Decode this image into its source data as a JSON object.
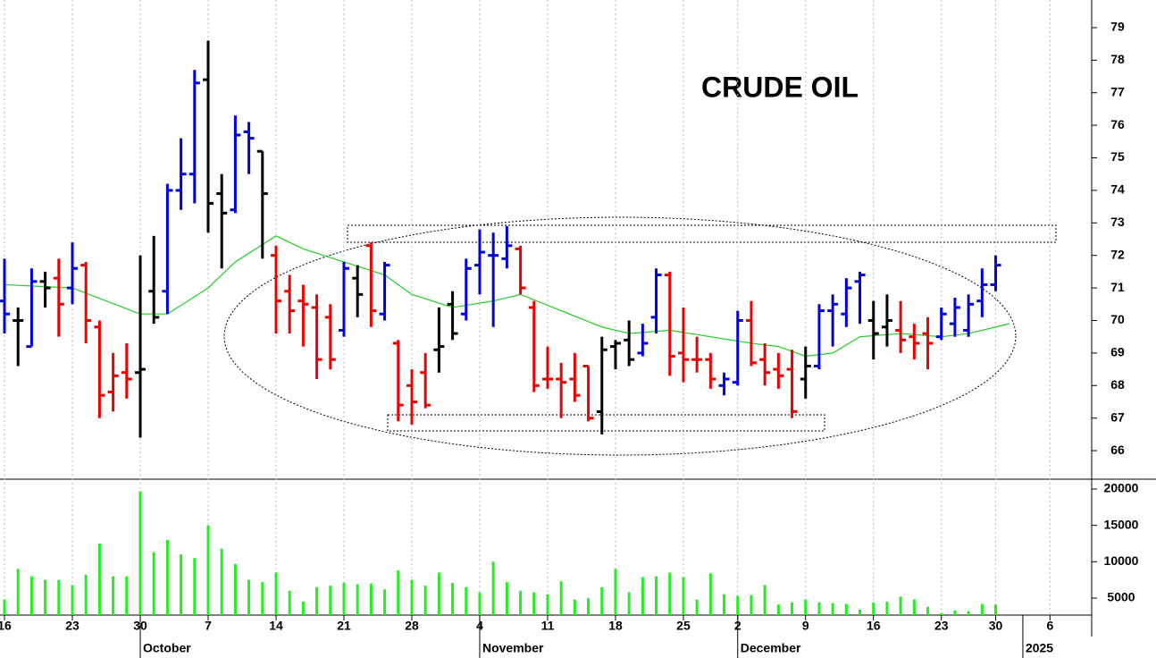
{
  "chart_data": [
    {
      "type": "ohlc",
      "title": "CRUDE OIL",
      "xlim": [
        -0.33,
        80.07
      ],
      "ylim": [
        65.15,
        79.85
      ],
      "yticks": [
        66,
        67,
        68,
        69,
        70,
        71,
        72,
        73,
        74,
        75,
        76,
        77,
        78,
        79
      ],
      "open": [
        70.6,
        70.0,
        69.2,
        71.2,
        71.3,
        71.0,
        71.7,
        69.8,
        67.8,
        68.4,
        68.4,
        70.9,
        70.9,
        74.0,
        74.5,
        77.4,
        73.9,
        73.4,
        75.8,
        75.2,
        72.0,
        70.9,
        70.6,
        70.4,
        70.1,
        69.7,
        71.3,
        72.3,
        70.2,
        69.3,
        68.0,
        68.4,
        69.1,
        70.5,
        70.2,
        71.7,
        72.0,
        71.9,
        72.2,
        70.4,
        68.2,
        68.2,
        68.2,
        68.6,
        67.2,
        69.2,
        69.4,
        69.0,
        70.1,
        71.4,
        69.0,
        68.8,
        68.8,
        68.0,
        68.1,
        70.0,
        68.8,
        68.5,
        68.5,
        68.2,
        68.6,
        70.3,
        70.2,
        71.2,
        70.0,
        69.8,
        69.7,
        69.5,
        69.6,
        69.5,
        69.9,
        69.7,
        70.6,
        71.1
      ],
      "high": [
        71.9,
        70.4,
        71.6,
        71.5,
        71.9,
        72.4,
        71.8,
        70.0,
        69.0,
        69.3,
        72.0,
        72.6,
        74.2,
        75.6,
        77.7,
        78.6,
        74.5,
        76.3,
        76.1,
        75.2,
        72.3,
        71.4,
        71.1,
        70.8,
        70.5,
        71.8,
        71.7,
        72.4,
        71.8,
        69.4,
        68.5,
        69.0,
        70.4,
        70.9,
        71.9,
        72.8,
        72.7,
        72.9,
        72.3,
        70.6,
        69.2,
        68.7,
        69.0,
        68.6,
        69.5,
        69.4,
        70.0,
        69.9,
        71.6,
        71.5,
        70.4,
        69.5,
        69.0,
        68.4,
        70.3,
        70.6,
        69.3,
        69.0,
        69.1,
        69.2,
        70.5,
        70.8,
        71.3,
        71.5,
        70.6,
        70.8,
        70.6,
        69.9,
        70.1,
        70.4,
        70.7,
        70.8,
        71.6,
        72.0
      ],
      "low": [
        69.6,
        68.6,
        69.2,
        70.4,
        69.5,
        70.5,
        69.3,
        67.0,
        67.2,
        67.6,
        66.4,
        69.9,
        70.2,
        73.4,
        73.6,
        72.7,
        71.6,
        73.3,
        74.5,
        71.9,
        69.6,
        69.6,
        69.2,
        68.2,
        68.5,
        69.5,
        70.1,
        69.8,
        70.0,
        66.9,
        66.8,
        67.3,
        68.4,
        69.4,
        70.0,
        70.8,
        69.8,
        71.6,
        70.8,
        67.8,
        67.9,
        67.0,
        67.5,
        66.9,
        66.5,
        68.5,
        68.6,
        68.9,
        69.6,
        68.3,
        68.1,
        68.4,
        67.9,
        67.7,
        68.0,
        68.6,
        68.0,
        67.9,
        67.0,
        67.6,
        68.5,
        69.2,
        69.8,
        69.9,
        68.8,
        69.2,
        69.0,
        68.8,
        68.5,
        69.4,
        69.5,
        69.5,
        70.1,
        70.9
      ],
      "close": [
        70.2,
        70.0,
        71.2,
        71.0,
        70.5,
        71.6,
        70.0,
        67.7,
        68.3,
        68.2,
        68.5,
        70.1,
        74.0,
        74.5,
        77.3,
        73.6,
        73.3,
        75.7,
        75.6,
        73.9,
        70.6,
        70.3,
        70.5,
        68.8,
        68.8,
        71.6,
        70.8,
        70.3,
        71.7,
        67.4,
        67.5,
        67.4,
        69.2,
        69.6,
        71.6,
        72.1,
        72.0,
        72.3,
        71.0,
        68.0,
        68.2,
        68.1,
        67.7,
        67.0,
        69.1,
        69.3,
        68.8,
        69.3,
        71.4,
        68.9,
        68.8,
        68.8,
        68.2,
        68.2,
        70.0,
        68.7,
        68.4,
        68.3,
        67.2,
        68.6,
        70.3,
        70.5,
        71.0,
        71.4,
        69.6,
        70.0,
        69.4,
        69.3,
        69.3,
        70.2,
        70.4,
        70.5,
        71.1,
        71.7
      ],
      "colors": [
        "#0000e0",
        "#000000",
        "#0000e0",
        "#000000",
        "#ee0000",
        "#0000e0",
        "#ee0000",
        "#ee0000",
        "#ee0000",
        "#ee0000",
        "#000000",
        "#000000",
        "#0000e0",
        "#0000e0",
        "#0000e0",
        "#000000",
        "#000000",
        "#0000e0",
        "#0000e0",
        "#000000",
        "#ee0000",
        "#ee0000",
        "#ee0000",
        "#ee0000",
        "#ee0000",
        "#0000e0",
        "#000000",
        "#ee0000",
        "#0000e0",
        "#ee0000",
        "#ee0000",
        "#ee0000",
        "#000000",
        "#000000",
        "#0000e0",
        "#0000e0",
        "#0000e0",
        "#0000e0",
        "#ee0000",
        "#ee0000",
        "#ee0000",
        "#ee0000",
        "#ee0000",
        "#ee0000",
        "#000000",
        "#000000",
        "#000000",
        "#0000e0",
        "#0000e0",
        "#ee0000",
        "#ee0000",
        "#ee0000",
        "#ee0000",
        "#0000e0",
        "#0000e0",
        "#ee0000",
        "#ee0000",
        "#ee0000",
        "#ee0000",
        "#000000",
        "#0000e0",
        "#0000e0",
        "#0000e0",
        "#0000e0",
        "#000000",
        "#000000",
        "#ee0000",
        "#ee0000",
        "#ee0000",
        "#0000e0",
        "#0000e0",
        "#0000e0",
        "#0000e0",
        "#0000e0"
      ],
      "lines": [
        {
          "color": "#22cc22",
          "x": [
            0,
            5,
            10,
            12,
            15,
            17,
            20,
            22,
            25,
            28,
            30,
            33,
            36,
            38,
            41,
            44,
            46,
            49,
            52,
            55,
            57,
            59,
            61,
            63,
            66,
            69,
            71,
            74
          ],
          "values": [
            71.1,
            71.0,
            70.2,
            70.2,
            71.0,
            71.8,
            72.6,
            72.2,
            71.8,
            71.4,
            70.8,
            70.4,
            70.6,
            70.8,
            70.3,
            69.8,
            69.6,
            69.7,
            69.5,
            69.3,
            69.2,
            68.9,
            69.0,
            69.5,
            69.6,
            69.5,
            69.6,
            69.9
          ]
        }
      ]
    },
    {
      "type": "bar",
      "color": "#22ee22",
      "xlim": [
        -0.33,
        80.07
      ],
      "ylim": [
        2660,
        21230
      ],
      "yticks": [
        5000,
        10000,
        15000,
        20000
      ],
      "values": [
        4800,
        9000,
        8000,
        7500,
        7500,
        6800,
        8200,
        12500,
        8000,
        8000,
        19700,
        11300,
        13000,
        11000,
        10500,
        15000,
        11800,
        9700,
        7500,
        7200,
        8500,
        6000,
        4500,
        6500,
        6700,
        7100,
        6900,
        7000,
        6200,
        8800,
        7500,
        6700,
        8500,
        7100,
        6500,
        5800,
        10000,
        7200,
        6000,
        5800,
        5500,
        7300,
        4800,
        5000,
        6500,
        9000,
        5800,
        7900,
        8000,
        8500,
        7900,
        4800,
        8400,
        5500,
        5300,
        5400,
        6800,
        4100,
        4400,
        4800,
        4400,
        4300,
        4200,
        3400,
        4400,
        4500,
        5200,
        4800,
        3800,
        2900,
        3300,
        3200,
        4200,
        4100
      ],
      "xticks": [
        {
          "value": 0,
          "label": "16"
        },
        {
          "value": 5,
          "label": "23"
        },
        {
          "value": 10,
          "label": "30"
        },
        {
          "value": 15,
          "label": "7"
        },
        {
          "value": 20,
          "label": "14"
        },
        {
          "value": 25,
          "label": "21"
        },
        {
          "value": 30,
          "label": "28"
        },
        {
          "value": 35,
          "label": "4"
        },
        {
          "value": 40,
          "label": "11"
        },
        {
          "value": 45,
          "label": "18"
        },
        {
          "value": 50,
          "label": "25"
        },
        {
          "value": 54,
          "label": "2"
        },
        {
          "value": 59,
          "label": "9"
        },
        {
          "value": 64,
          "label": "16"
        },
        {
          "value": 69,
          "label": "23"
        },
        {
          "value": 73,
          "label": "30"
        },
        {
          "value": 77,
          "label": "6"
        }
      ],
      "months": [
        {
          "value": 10,
          "label": "October"
        },
        {
          "value": 35,
          "label": "November"
        },
        {
          "value": 54,
          "label": "December"
        },
        {
          "value": 75,
          "label": "2025"
        }
      ]
    }
  ]
}
